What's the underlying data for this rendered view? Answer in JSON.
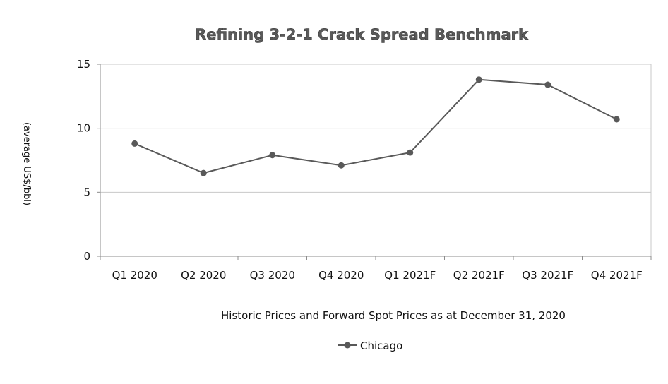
{
  "chart_data": {
    "type": "line",
    "title": "Refining 3-2-1 Crack Spread Benchmark",
    "xlabel": "Historic Prices and Forward Spot Prices as at December 31, 2020",
    "ylabel": "(average US$/bbl)",
    "ylim": [
      0,
      15
    ],
    "yticks": [
      0,
      5,
      10,
      15
    ],
    "grid": true,
    "legend_position": "bottom-center",
    "categories": [
      "Q1 2020",
      "Q2 2020",
      "Q3 2020",
      "Q4 2020",
      "Q1 2021F",
      "Q2 2021F",
      "Q3 2021F",
      "Q4 2021F"
    ],
    "series": [
      {
        "name": "Chicago",
        "color": "#595959",
        "values": [
          8.8,
          6.5,
          7.9,
          7.1,
          8.1,
          13.8,
          13.4,
          10.7
        ]
      }
    ]
  }
}
